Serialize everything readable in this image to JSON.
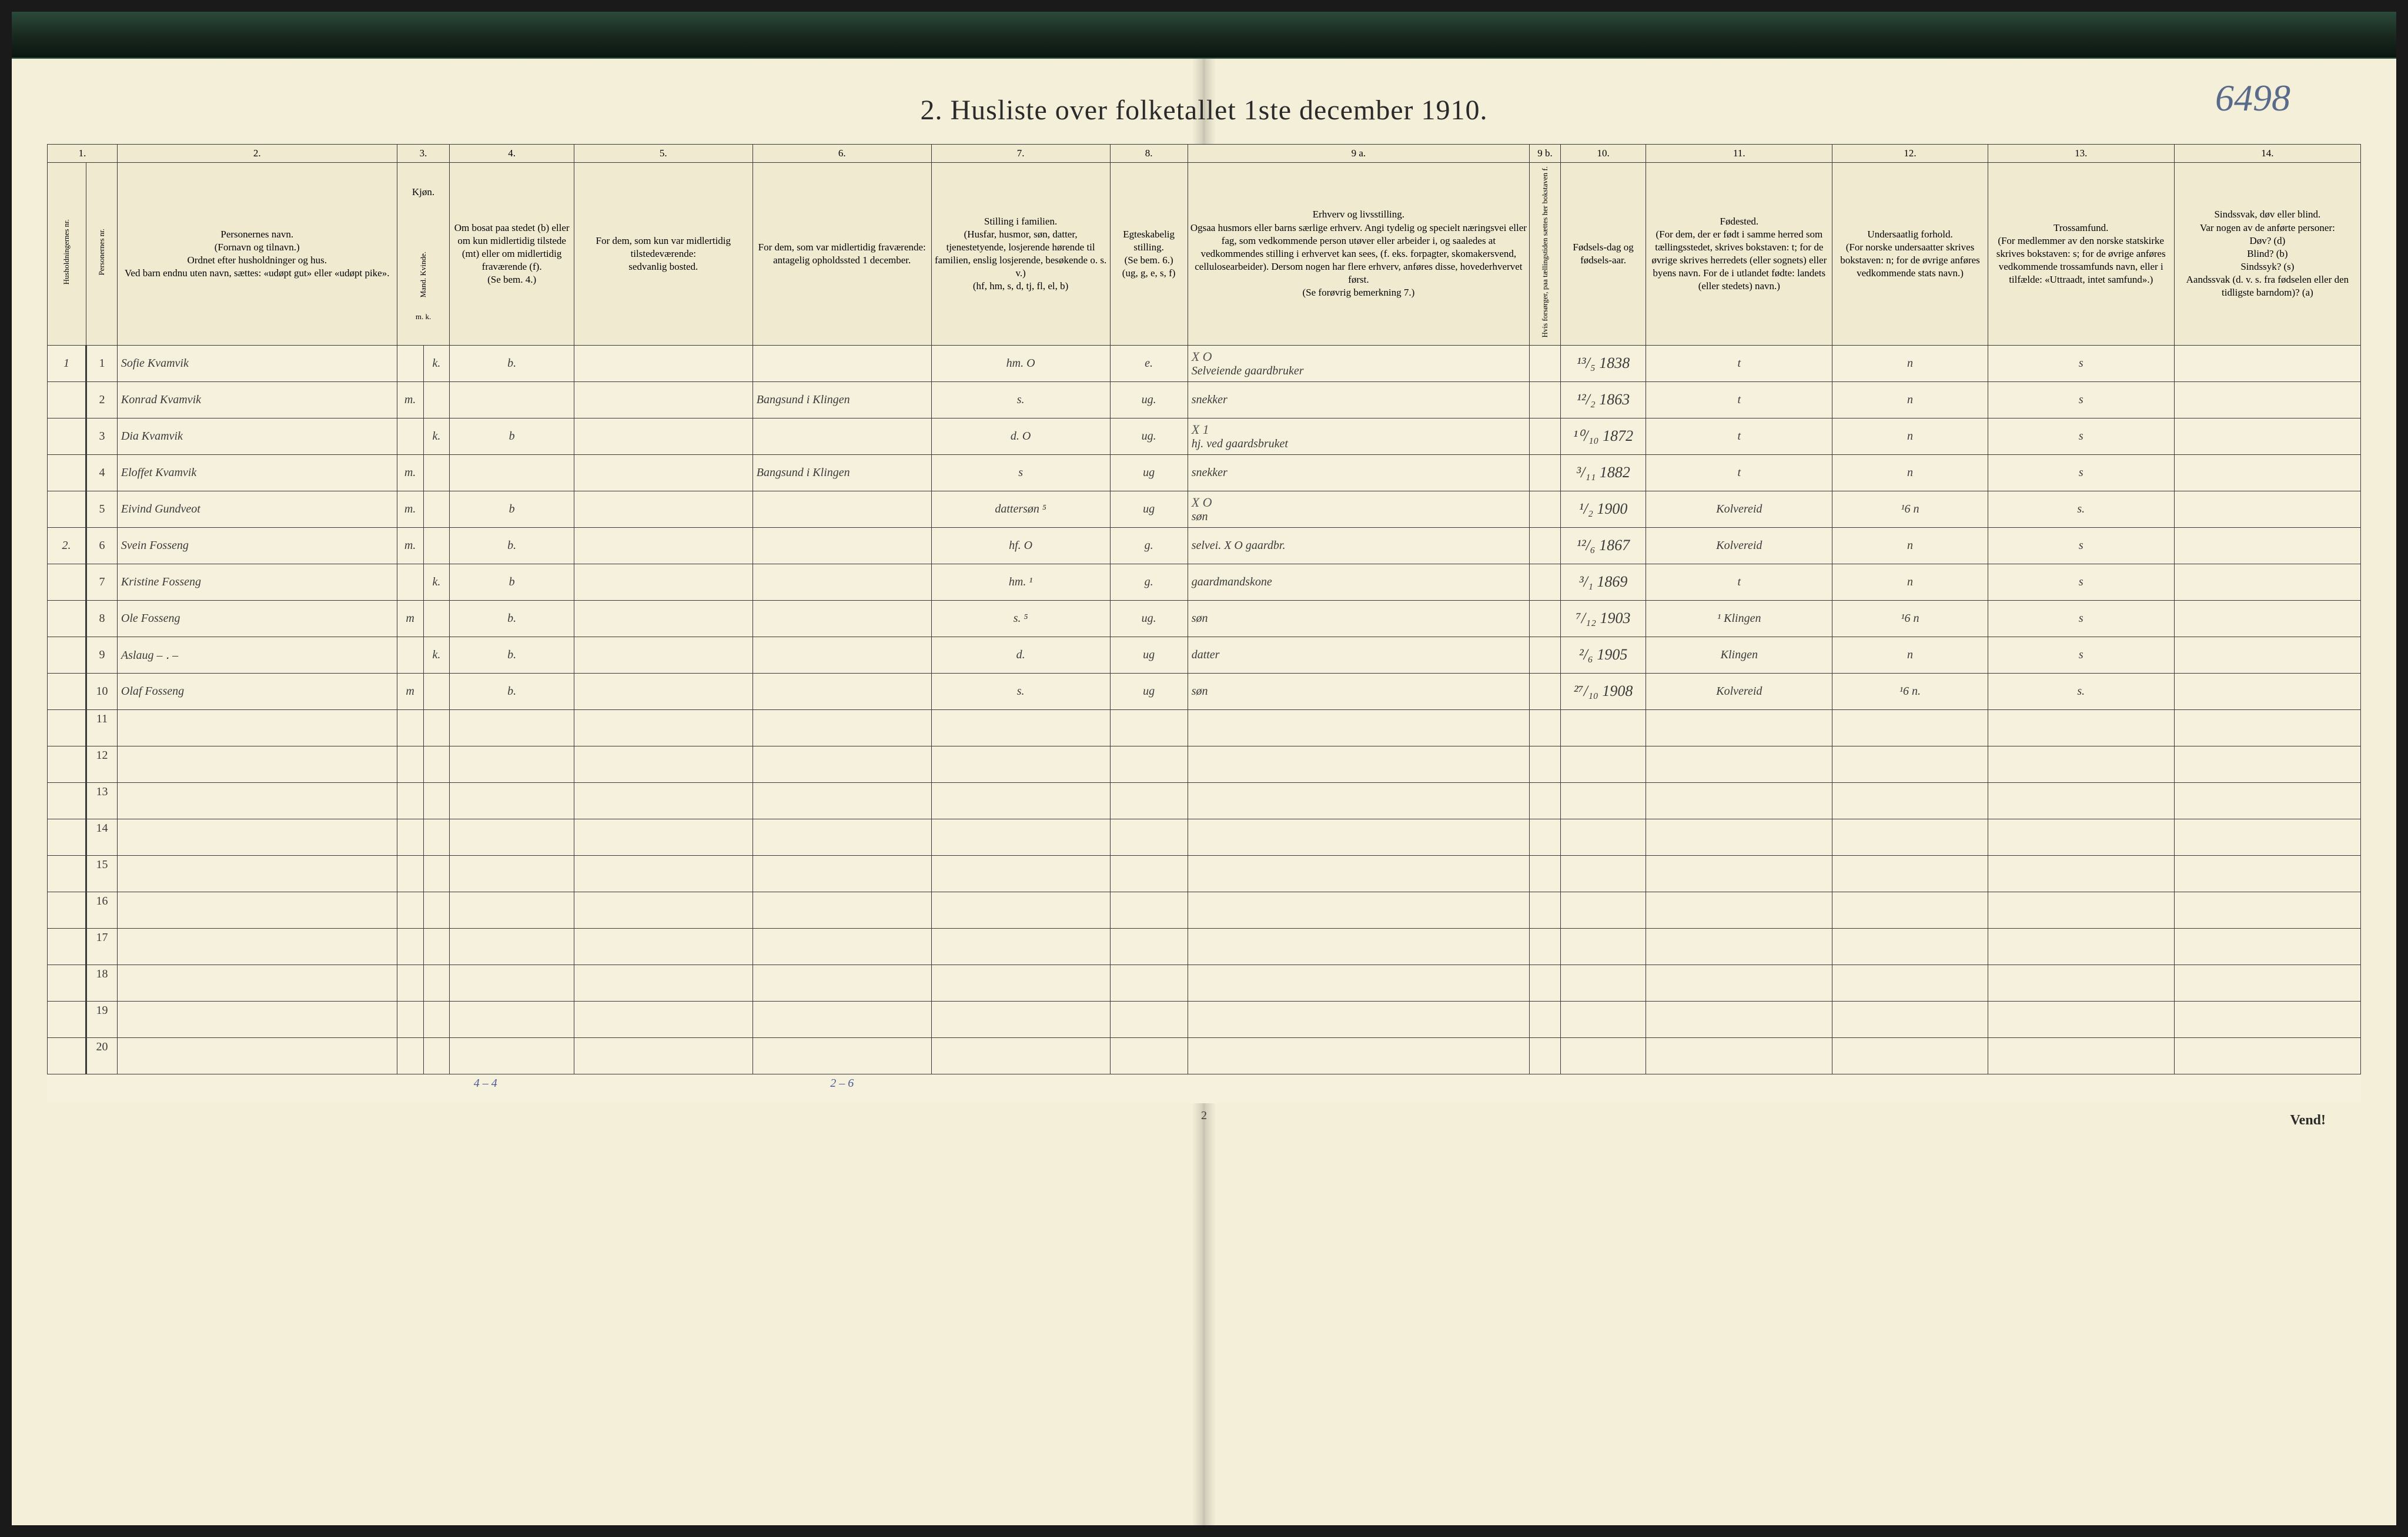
{
  "page_number_handwritten": "6498",
  "title": "2.  Husliste over folketallet 1ste december 1910.",
  "footer_page": "2",
  "vend_text": "Vend!",
  "bottom_tally_1": "4 – 4",
  "bottom_tally_2": "2 – 6",
  "col_numbers": [
    "1.",
    "2.",
    "3.",
    "4.",
    "5.",
    "6.",
    "7.",
    "8.",
    "9 a.",
    "9 b.",
    "10.",
    "11.",
    "12.",
    "13.",
    "14."
  ],
  "headers": {
    "h1": "Husholdningernes nr.",
    "h1b": "Personernes nr.",
    "h2": "Personernes navn.\n(Fornavn og tilnavn.)\nOrdnet efter husholdninger og hus.\nVed barn endnu uten navn, sættes: «udøpt gut» eller «udøpt pike».",
    "h3": "Kjøn.",
    "h3_sub": "Mand.  Kvinde.",
    "h3_mk": "m.   k.",
    "h4": "Om bosat paa stedet (b) eller om kun midlertidig tilstede (mt) eller om midlertidig fraværende (f).\n(Se bem. 4.)",
    "h5": "For dem, som kun var midlertidig tilstedeværende:\nsedvanlig bosted.",
    "h6": "For dem, som var midlertidig fraværende:\nantagelig opholdssted 1 december.",
    "h7": "Stilling i familien.\n(Husfar, husmor, søn, datter, tjenestetyende, losjerende hørende til familien, enslig losjerende, besøkende o. s. v.)\n(hf, hm, s, d, tj, fl, el, b)",
    "h8": "Egteskabelig stilling.\n(Se bem. 6.)\n(ug, g, e, s, f)",
    "h9a": "Erhverv og livsstilling.\nOgsaa husmors eller barns særlige erhverv. Angi tydelig og specielt næringsvei eller fag, som vedkommende person utøver eller arbeider i, og saaledes at vedkommendes stilling i erhvervet kan sees, (f. eks. forpagter, skomakersvend, cellulosearbeider). Dersom nogen har flere erhverv, anføres disse, hovederhvervet først.\n(Se forøvrig bemerkning 7.)",
    "h9b": "Hvis forsørger, paa tællingstiden sættes her bokstaven f.",
    "h10": "Fødsels-dag og fødsels-aar.",
    "h11": "Fødested.\n(For dem, der er født i samme herred som tællingsstedet, skrives bokstaven: t; for de øvrige skrives herredets (eller sognets) eller byens navn. For de i utlandet fødte: landets (eller stedets) navn.)",
    "h12": "Undersaatlig forhold.\n(For norske undersaatter skrives bokstaven: n; for de øvrige anføres vedkommende stats navn.)",
    "h13": "Trossamfund.\n(For medlemmer av den norske statskirke skrives bokstaven: s; for de øvrige anføres vedkommende trossamfunds navn, eller i tilfælde: «Uttraadt, intet samfund».)",
    "h14": "Sindssvak, døv eller blind.\nVar nogen av de anførte personer:\nDøv? (d)\nBlind? (b)\nSindssyk? (s)\nAandssvak (d. v. s. fra fødselen eller den tidligste barndom)? (a)"
  },
  "rows": [
    {
      "household": "1",
      "person": "1",
      "name": "Sofie Kvamvik",
      "sex": "k.",
      "res": "b.",
      "temp_away": "",
      "fam": "hm.  O",
      "marital": "e.",
      "occupation": "Selveiende gaardbruker",
      "note": "X O",
      "dob": "¹³/₅ 1838",
      "birthplace": "t",
      "nation": "n",
      "faith": "s",
      "dis": ""
    },
    {
      "household": "",
      "person": "2",
      "name": "Konrad Kvamvik",
      "sex": "m.",
      "res": "",
      "temp_away": "Bangsund i Klingen",
      "fam": "s.",
      "marital": "ug.",
      "occupation": "snekker",
      "note": "",
      "dob": "¹²/₂ 1863",
      "birthplace": "t",
      "nation": "n",
      "faith": "s",
      "dis": ""
    },
    {
      "household": "",
      "person": "3",
      "name": "Dia Kvamvik",
      "sex": "k.",
      "res": "b",
      "temp_away": "",
      "fam": "d.  O",
      "marital": "ug.",
      "occupation": "hj. ved gaardsbruket",
      "note": "X 1",
      "dob": "¹⁰/₁₀ 1872",
      "birthplace": "t",
      "nation": "n",
      "faith": "s",
      "dis": ""
    },
    {
      "household": "",
      "person": "4",
      "name": "Eloffet Kvamvik",
      "sex": "m.",
      "res": "",
      "temp_away": "Bangsund i Klingen",
      "fam": "s",
      "marital": "ug",
      "occupation": "snekker",
      "note": "",
      "dob": "³/₁₁ 1882",
      "birthplace": "t",
      "nation": "n",
      "faith": "s",
      "dis": ""
    },
    {
      "household": "",
      "person": "5",
      "name": "Eivind Gundveot",
      "sex": "m.",
      "res": "b",
      "temp_away": "",
      "fam": "dattersøn ⁵",
      "marital": "ug",
      "occupation": "søn",
      "note": "X O",
      "dob": "¹/₂ 1900",
      "birthplace": "Kolvereid",
      "nation": "¹6  n",
      "faith": "s.",
      "dis": ""
    },
    {
      "household": "2.",
      "person": "6",
      "name": "Svein Fosseng",
      "sex": "m.",
      "res": "b.",
      "temp_away": "",
      "fam": "hf.  O",
      "marital": "g.",
      "occupation": "selvei. X O gaardbr.",
      "note": "",
      "dob": "¹²/₆ 1867",
      "birthplace": "Kolvereid",
      "nation": "n",
      "faith": "s",
      "dis": ""
    },
    {
      "household": "",
      "person": "7",
      "name": "Kristine Fosseng",
      "sex": "k.",
      "res": "b",
      "temp_away": "",
      "fam": "hm.  ¹",
      "marital": "g.",
      "occupation": "gaardmandskone",
      "note": "",
      "dob": "³/₁ 1869",
      "birthplace": "t",
      "nation": "n",
      "faith": "s",
      "dis": ""
    },
    {
      "household": "",
      "person": "8",
      "name": "Ole Fosseng",
      "sex": "m",
      "res": "b.",
      "temp_away": "",
      "fam": "s.  ⁵",
      "marital": "ug.",
      "occupation": "søn",
      "note": "",
      "dob": "⁷/₁₂ 1903",
      "birthplace": "¹ Klingen",
      "nation": "¹6  n",
      "faith": "s",
      "dis": ""
    },
    {
      "household": "",
      "person": "9",
      "name": "Aslaug    – ․ –",
      "sex": "k.",
      "res": "b.",
      "temp_away": "",
      "fam": "d.",
      "marital": "ug",
      "occupation": "datter",
      "note": "",
      "dob": "²/₆ 1905",
      "birthplace": "Klingen",
      "nation": "n",
      "faith": "s",
      "dis": ""
    },
    {
      "household": "",
      "person": "10",
      "name": "Olaf  Fosseng",
      "sex": "m",
      "res": "b.",
      "temp_away": "",
      "fam": "s.",
      "marital": "ug",
      "occupation": "søn",
      "note": "",
      "dob": "²⁷/₁₀ 1908",
      "birthplace": "Kolvereid",
      "nation": "¹6  n.",
      "faith": "s.",
      "dis": ""
    }
  ],
  "empty_rows": [
    "11",
    "12",
    "13",
    "14",
    "15",
    "16",
    "17",
    "18",
    "19",
    "20"
  ],
  "colors": {
    "paper": "#f4efd8",
    "ink": "#2a2a2a",
    "handwriting": "#3a3a3a",
    "blue_pencil": "#4a5a9a",
    "border": "#3a3a3a"
  }
}
